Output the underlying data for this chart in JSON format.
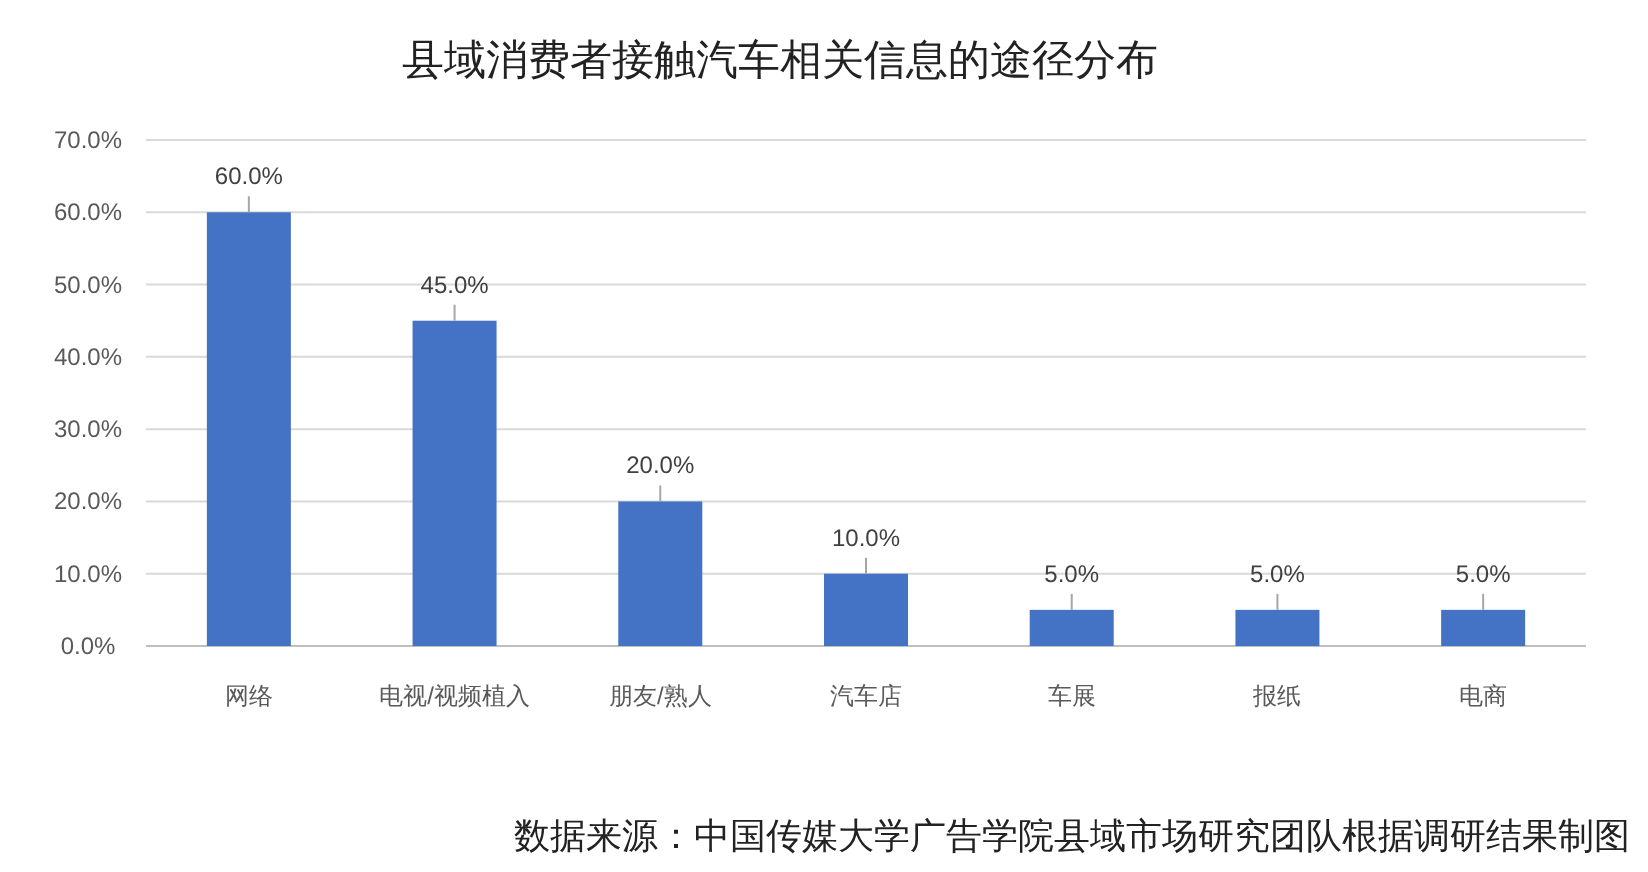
{
  "chart_data": {
    "type": "bar",
    "title": "县域消费者接触汽车相关信息的途径分布",
    "categories": [
      "网络",
      "电视/视频植入",
      "朋友/熟人",
      "汽车店",
      "车展",
      "报纸",
      "电商"
    ],
    "values": [
      60,
      45,
      20,
      10,
      5,
      5,
      5
    ],
    "value_labels": [
      "60.0%",
      "45.0%",
      "20.0%",
      "10.0%",
      "5.0%",
      "5.0%",
      "5.0%"
    ],
    "color": "#4472c4",
    "ylim": [
      0,
      70
    ],
    "yticks": [
      {
        "value": 0,
        "label": "0.0%"
      },
      {
        "value": 10,
        "label": "10.0%"
      },
      {
        "value": 20,
        "label": "20.0%"
      },
      {
        "value": 30,
        "label": "30.0%"
      },
      {
        "value": 40,
        "label": "40.0%"
      },
      {
        "value": 50,
        "label": "50.0%"
      },
      {
        "value": 60,
        "label": "60.0%"
      },
      {
        "value": 70,
        "label": "70.0%"
      }
    ],
    "grid": "y",
    "annotations": [
      "数据来源：中国传媒大学广告学院县域市场研究团队根据调研结果制图"
    ]
  }
}
